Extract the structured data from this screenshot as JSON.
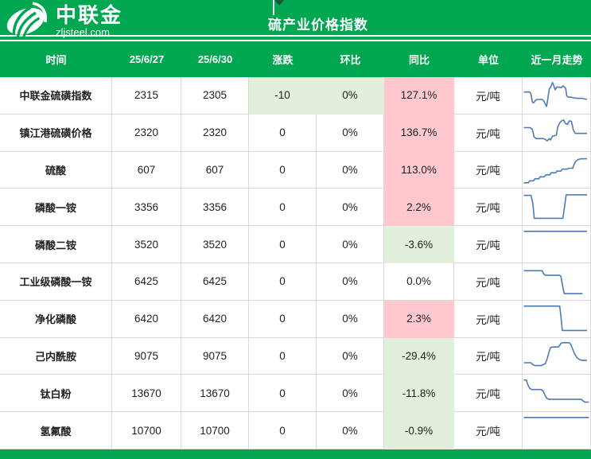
{
  "colors": {
    "brand_green": "#00A650",
    "cell_pink": "#FFC7CE",
    "cell_light_green": "#E2EFDA",
    "sparkline_blue": "#4C7BB4",
    "gridline": "#D9D9D9"
  },
  "banner": {
    "logo_title": "中联金",
    "logo_subtitle": "zljsteel.com",
    "title": "硫产业价格指数"
  },
  "header": {
    "columns": [
      "时间",
      "25/6/27",
      "25/6/30",
      "涨跌",
      "环比",
      "同比",
      "单位",
      "近一月走势"
    ]
  },
  "rows": [
    {
      "name": "中联金硫磺指数",
      "d1": "2315",
      "d2": "2305",
      "change": "-10",
      "mom": "0%",
      "yoy": "127.1%",
      "unit": "元/吨",
      "change_bg": "green",
      "mom_bg": "green",
      "yoy_bg": "pink",
      "trend": [
        [
          0,
          62
        ],
        [
          9,
          62
        ],
        [
          11,
          55
        ],
        [
          13,
          28
        ],
        [
          15,
          24
        ],
        [
          18,
          33
        ],
        [
          20,
          36
        ],
        [
          28,
          36
        ],
        [
          30,
          33
        ],
        [
          33,
          20
        ],
        [
          35,
          12
        ],
        [
          37,
          40
        ],
        [
          39,
          72
        ],
        [
          41,
          78
        ],
        [
          44,
          95
        ],
        [
          46,
          85
        ],
        [
          48,
          70
        ],
        [
          51,
          80
        ],
        [
          55,
          78
        ],
        [
          58,
          78
        ],
        [
          60,
          84
        ],
        [
          62,
          80
        ],
        [
          64,
          76
        ],
        [
          66,
          48
        ],
        [
          69,
          44
        ],
        [
          73,
          44
        ],
        [
          76,
          42
        ],
        [
          82,
          40
        ],
        [
          89,
          40
        ],
        [
          97,
          36
        ]
      ]
    },
    {
      "name": "镇江港硫磺价格",
      "d1": "2320",
      "d2": "2320",
      "change": "0",
      "mom": "0%",
      "yoy": "136.7%",
      "unit": "元/吨",
      "change_bg": "",
      "mom_bg": "",
      "yoy_bg": "pink",
      "trend": [
        [
          0,
          68
        ],
        [
          10,
          68
        ],
        [
          13,
          62
        ],
        [
          16,
          35
        ],
        [
          19,
          30
        ],
        [
          30,
          30
        ],
        [
          33,
          27
        ],
        [
          36,
          22
        ],
        [
          39,
          30
        ],
        [
          41,
          25
        ],
        [
          44,
          38
        ],
        [
          47,
          40
        ],
        [
          50,
          42
        ],
        [
          52,
          70
        ],
        [
          55,
          85
        ],
        [
          58,
          92
        ],
        [
          61,
          95
        ],
        [
          64,
          82
        ],
        [
          67,
          80
        ],
        [
          70,
          92
        ],
        [
          73,
          90
        ],
        [
          76,
          60
        ],
        [
          79,
          48
        ],
        [
          86,
          48
        ],
        [
          97,
          48
        ]
      ]
    },
    {
      "name": "硫酸",
      "d1": "607",
      "d2": "607",
      "change": "0",
      "mom": "0%",
      "yoy": "113.0%",
      "unit": "元/吨",
      "change_bg": "",
      "mom_bg": "",
      "yoy_bg": "pink",
      "trend": [
        [
          0,
          6
        ],
        [
          7,
          6
        ],
        [
          9,
          13
        ],
        [
          15,
          13
        ],
        [
          17,
          20
        ],
        [
          23,
          20
        ],
        [
          25,
          27
        ],
        [
          31,
          27
        ],
        [
          34,
          34
        ],
        [
          40,
          34
        ],
        [
          42,
          41
        ],
        [
          49,
          41
        ],
        [
          51,
          47
        ],
        [
          57,
          47
        ],
        [
          59,
          54
        ],
        [
          67,
          54
        ],
        [
          69,
          57
        ],
        [
          75,
          57
        ],
        [
          77,
          70
        ],
        [
          80,
          82
        ],
        [
          84,
          88
        ],
        [
          88,
          90
        ],
        [
          97,
          90
        ]
      ]
    },
    {
      "name": "磷酸一铵",
      "d1": "3356",
      "d2": "3356",
      "change": "0",
      "mom": "0%",
      "yoy": "2.2%",
      "unit": "元/吨",
      "change_bg": "",
      "mom_bg": "",
      "yoy_bg": "pink",
      "trend": [
        [
          0,
          90
        ],
        [
          11,
          90
        ],
        [
          14,
          60
        ],
        [
          16,
          10
        ],
        [
          60,
          10
        ],
        [
          63,
          60
        ],
        [
          65,
          92
        ],
        [
          97,
          92
        ]
      ]
    },
    {
      "name": "磷酸二铵",
      "d1": "3520",
      "d2": "3520",
      "change": "0",
      "mom": "0%",
      "yoy": "-3.6%",
      "unit": "元/吨",
      "change_bg": "",
      "mom_bg": "",
      "yoy_bg": "green",
      "trend": [
        [
          0,
          95
        ],
        [
          97,
          95
        ]
      ]
    },
    {
      "name": "工业级磷酸一铵",
      "d1": "6425",
      "d2": "6425",
      "change": "0",
      "mom": "0%",
      "yoy": "0.0%",
      "unit": "元/吨",
      "change_bg": "",
      "mom_bg": "",
      "yoy_bg": "",
      "trend": [
        [
          0,
          88
        ],
        [
          28,
          88
        ],
        [
          31,
          75
        ],
        [
          34,
          72
        ],
        [
          55,
          72
        ],
        [
          57,
          68
        ],
        [
          60,
          30
        ],
        [
          62,
          8
        ],
        [
          90,
          8
        ]
      ]
    },
    {
      "name": "净化磷酸",
      "d1": "6420",
      "d2": "6420",
      "change": "0",
      "mom": "0%",
      "yoy": "2.3%",
      "unit": "元/吨",
      "change_bg": "",
      "mom_bg": "",
      "yoy_bg": "pink",
      "trend": [
        [
          0,
          95
        ],
        [
          55,
          95
        ],
        [
          57,
          60
        ],
        [
          59,
          10
        ],
        [
          97,
          10
        ]
      ]
    },
    {
      "name": "己内酰胺",
      "d1": "9075",
      "d2": "9075",
      "change": "0",
      "mom": "0%",
      "yoy": "-29.4%",
      "unit": "元/吨",
      "change_bg": "",
      "mom_bg": "",
      "yoy_bg": "green",
      "trend": [
        [
          0,
          25
        ],
        [
          11,
          25
        ],
        [
          14,
          18
        ],
        [
          18,
          15
        ],
        [
          27,
          15
        ],
        [
          30,
          19
        ],
        [
          33,
          22
        ],
        [
          36,
          40
        ],
        [
          39,
          65
        ],
        [
          41,
          78
        ],
        [
          44,
          80
        ],
        [
          53,
          80
        ],
        [
          55,
          85
        ],
        [
          57,
          93
        ],
        [
          60,
          95
        ],
        [
          69,
          95
        ],
        [
          72,
          90
        ],
        [
          75,
          72
        ],
        [
          78,
          55
        ],
        [
          82,
          42
        ],
        [
          86,
          35
        ],
        [
          92,
          33
        ],
        [
          97,
          33
        ]
      ]
    },
    {
      "name": "钛白粉",
      "d1": "13670",
      "d2": "13670",
      "change": "0",
      "mom": "0%",
      "yoy": "-11.8%",
      "unit": "元/吨",
      "change_bg": "",
      "mom_bg": "",
      "yoy_bg": "green",
      "trend": [
        [
          0,
          95
        ],
        [
          4,
          95
        ],
        [
          6,
          80
        ],
        [
          9,
          66
        ],
        [
          12,
          62
        ],
        [
          27,
          62
        ],
        [
          30,
          56
        ],
        [
          32,
          45
        ],
        [
          35,
          32
        ],
        [
          38,
          28
        ],
        [
          88,
          28
        ],
        [
          91,
          22
        ],
        [
          94,
          18
        ],
        [
          100,
          18
        ]
      ]
    },
    {
      "name": "氢氟酸",
      "d1": "10700",
      "d2": "10700",
      "change": "0",
      "mom": "0%",
      "yoy": "-0.9%",
      "unit": "元/吨",
      "change_bg": "",
      "mom_bg": "",
      "yoy_bg": "green",
      "trend": [
        [
          0,
          95
        ],
        [
          100,
          95
        ]
      ]
    }
  ]
}
